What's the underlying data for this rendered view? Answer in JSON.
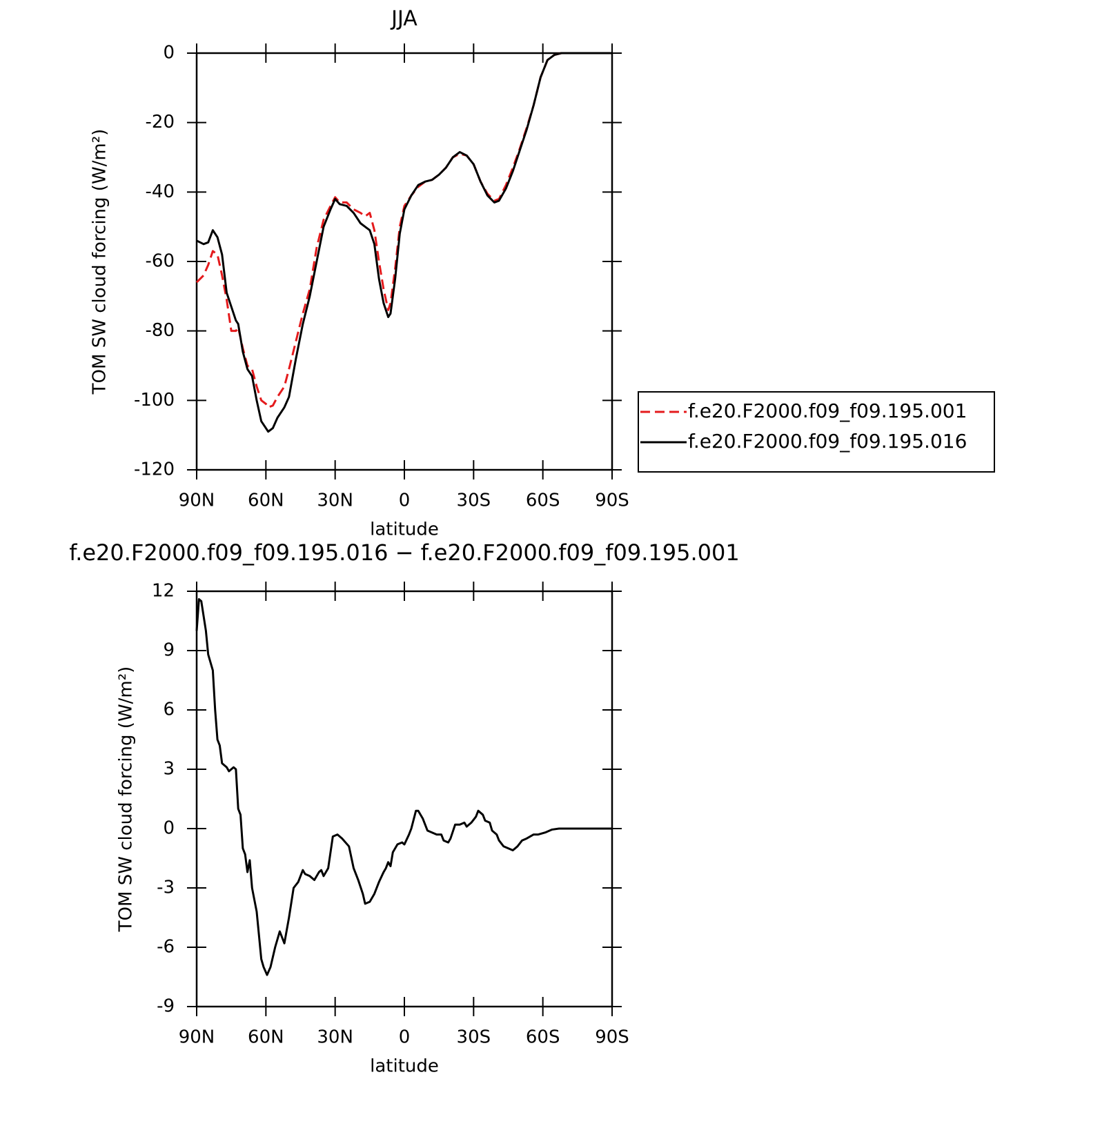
{
  "chart_data": [
    {
      "type": "line",
      "title": "JJA",
      "xlabel": "latitude",
      "ylabel": "TOM SW cloud forcing (W/m²)",
      "x": [
        90,
        87,
        85,
        83,
        81,
        79,
        77,
        75,
        73,
        72,
        70,
        68,
        66,
        64,
        62,
        60,
        59,
        57,
        55,
        52,
        50,
        47,
        44,
        41,
        38,
        35,
        32,
        30,
        28,
        25,
        22,
        19,
        17,
        15,
        13,
        11,
        9,
        7,
        6,
        4,
        2,
        0,
        -3,
        -6,
        -9,
        -12,
        -15,
        -18,
        -21,
        -24,
        -27,
        -30,
        -33,
        -36,
        -39,
        -41,
        -44,
        -47,
        -50,
        -53,
        -56,
        -59,
        -62,
        -65,
        -68,
        -75,
        -90
      ],
      "series": [
        {
          "name": "f.e20.F2000.f09_f09.195.001",
          "color": "#e41a1c",
          "dash": "dashed",
          "values": [
            -66,
            -64,
            -61,
            -57,
            -58,
            -64,
            -71,
            -80,
            -80,
            -79,
            -85,
            -90,
            -91,
            -96,
            -100,
            -101,
            -102,
            -101.5,
            -99,
            -96,
            -91,
            -83,
            -75,
            -68,
            -56,
            -48,
            -44,
            -41.5,
            -43,
            -43,
            -45,
            -46,
            -47,
            -46,
            -51,
            -60,
            -68,
            -74,
            -72,
            -62,
            -50,
            -44,
            -41,
            -38.5,
            -37,
            -36.5,
            -35,
            -33,
            -30,
            -29,
            -29.5,
            -32,
            -37,
            -40.5,
            -42.5,
            -42,
            -38,
            -33,
            -27.5,
            -21.5,
            -15,
            -7,
            -2,
            -0.5,
            0,
            0,
            0
          ]
        },
        {
          "name": "f.e20.F2000.f09_f09.195.016",
          "color": "#000000",
          "dash": "solid",
          "values": [
            -54,
            -55,
            -54.5,
            -51,
            -53,
            -58,
            -69,
            -73,
            -77,
            -78,
            -86,
            -91,
            -93,
            -100,
            -106,
            -108,
            -109,
            -108,
            -105,
            -102,
            -99,
            -88,
            -78,
            -70,
            -60,
            -50,
            -45,
            -42,
            -43.5,
            -44,
            -46,
            -49,
            -50,
            -51,
            -55,
            -65,
            -72,
            -76,
            -75,
            -65,
            -52,
            -45,
            -41,
            -38,
            -37,
            -36.5,
            -35,
            -33,
            -30,
            -28.5,
            -29.5,
            -32,
            -37,
            -41,
            -43,
            -42.5,
            -39,
            -34,
            -28,
            -22,
            -15,
            -7,
            -2,
            -0.5,
            0,
            0,
            0
          ]
        }
      ],
      "xlim": [
        90,
        -90
      ],
      "xticks": [
        {
          "value": 90,
          "label": "90N"
        },
        {
          "value": 60,
          "label": "60N"
        },
        {
          "value": 30,
          "label": "30N"
        },
        0,
        {
          "value": -30,
          "label": "30S"
        },
        {
          "value": -60,
          "label": "60S"
        },
        {
          "value": -90,
          "label": "90S"
        }
      ],
      "ylim": [
        -120,
        0
      ],
      "yticks": [
        0,
        -20,
        -40,
        -60,
        -80,
        -100,
        -120
      ],
      "legend": "right"
    },
    {
      "type": "line",
      "title": "f.e20.F2000.f09_f09.195.016 − f.e20.F2000.f09_f09.195.001",
      "xlabel": "latitude",
      "ylabel": "TOM SW cloud forcing (W/m²)",
      "x": [
        90,
        89,
        88,
        86,
        85,
        83,
        82,
        81,
        80,
        79,
        77,
        76,
        74,
        73,
        72,
        71,
        70,
        69,
        68,
        67,
        66,
        64,
        62,
        61,
        59.5,
        58,
        56,
        54,
        52,
        50,
        48,
        46,
        44,
        43,
        41,
        39,
        37,
        36,
        35,
        33,
        31,
        29,
        27,
        24,
        22,
        20,
        18,
        17,
        15,
        13,
        11,
        9,
        8,
        7,
        6,
        5,
        3,
        1,
        0,
        -2,
        -3,
        -5,
        -6,
        -8,
        -10,
        -12,
        -14,
        -16,
        -17,
        -19,
        -20,
        -22,
        -24,
        -26,
        -27,
        -29,
        -31,
        -32,
        -34,
        -35,
        -37,
        -38,
        -40,
        -41,
        -43,
        -45,
        -47,
        -49,
        -51,
        -53,
        -56,
        -58,
        -61,
        -64,
        -67,
        -90
      ],
      "series": [
        {
          "color": "#000000",
          "dash": "solid",
          "values": [
            10,
            11.6,
            11.5,
            10,
            8.8,
            8,
            6,
            4.5,
            4.2,
            3.3,
            3.1,
            2.9,
            3.1,
            3,
            1,
            0.7,
            -1,
            -1.3,
            -2.2,
            -1.6,
            -3,
            -4.2,
            -6.6,
            -7,
            -7.4,
            -7,
            -6,
            -5.2,
            -5.8,
            -4.5,
            -3,
            -2.7,
            -2.1,
            -2.3,
            -2.4,
            -2.6,
            -2.2,
            -2.1,
            -2.4,
            -2,
            -0.4,
            -0.3,
            -0.5,
            -0.9,
            -2,
            -2.6,
            -3.3,
            -3.8,
            -3.7,
            -3.3,
            -2.7,
            -2.2,
            -2,
            -1.7,
            -1.9,
            -1.2,
            -0.8,
            -0.7,
            -0.8,
            -0.3,
            0,
            0.9,
            0.9,
            0.5,
            -0.1,
            -0.2,
            -0.3,
            -0.3,
            -0.6,
            -0.7,
            -0.5,
            0.2,
            0.2,
            0.3,
            0.1,
            0.3,
            0.6,
            0.9,
            0.7,
            0.4,
            0.3,
            -0.1,
            -0.3,
            -0.6,
            -0.9,
            -1,
            -1.1,
            -0.9,
            -0.6,
            -0.5,
            -0.3,
            -0.3,
            -0.2,
            -0.05,
            0,
            0
          ]
        }
      ],
      "xlim": [
        90,
        -90
      ],
      "xticks": [
        {
          "value": 90,
          "label": "90N"
        },
        {
          "value": 60,
          "label": "60N"
        },
        {
          "value": 30,
          "label": "30N"
        },
        0,
        {
          "value": -30,
          "label": "30S"
        },
        {
          "value": -60,
          "label": "60S"
        },
        {
          "value": -90,
          "label": "90S"
        }
      ],
      "ylim": [
        -9,
        12
      ],
      "yticks": [
        12,
        9,
        6,
        3,
        0,
        -3,
        -6,
        -9
      ]
    }
  ]
}
